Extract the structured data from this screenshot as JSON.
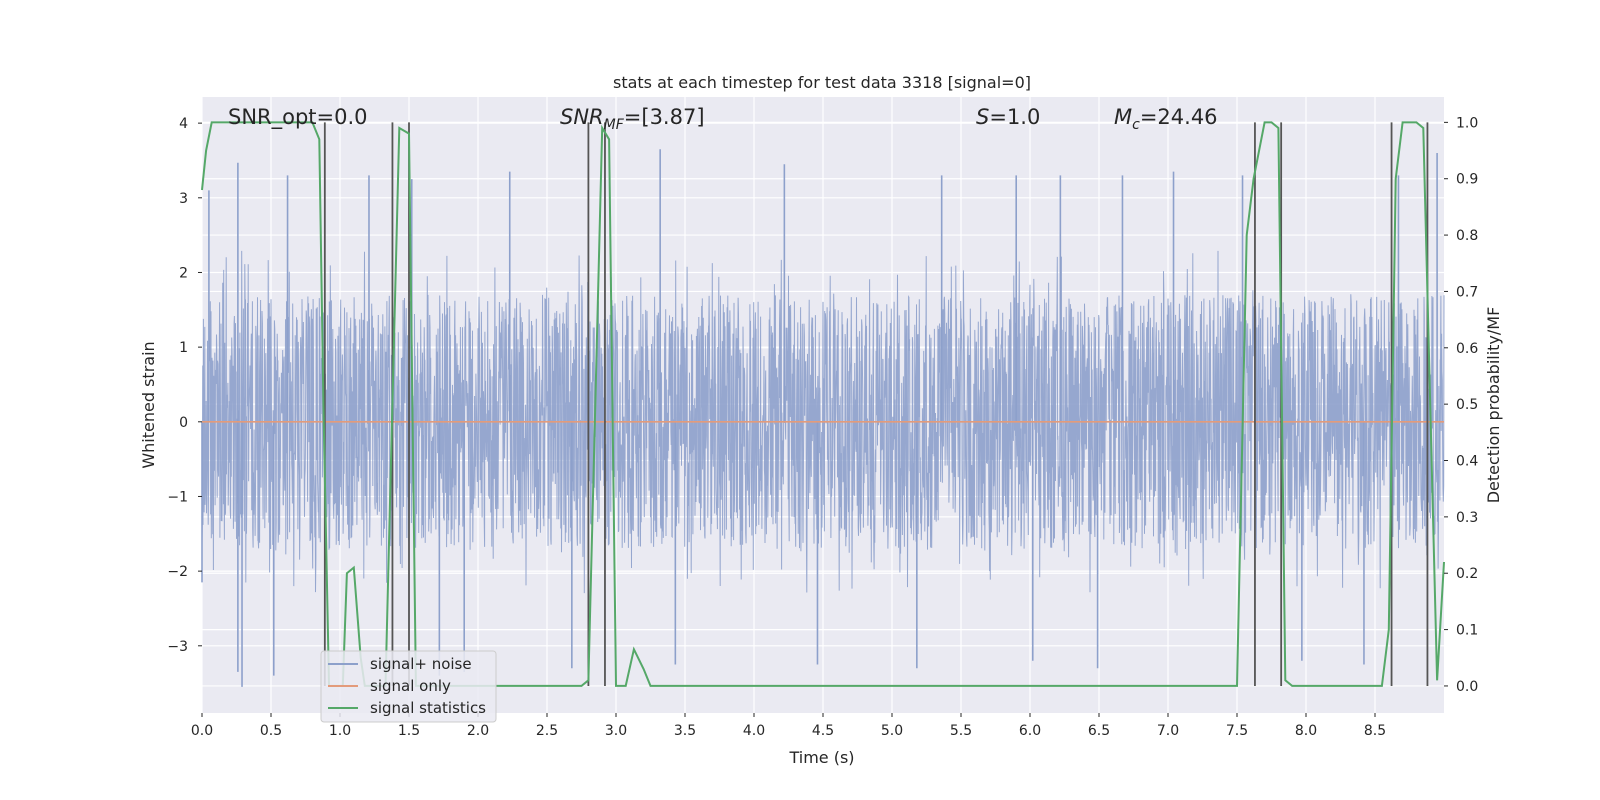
{
  "chart_data": {
    "type": "line",
    "title": "stats at each timestep for test data 3318 [signal=0]",
    "xlabel": "Time (s)",
    "ylabel_left": "Whitened strain",
    "ylabel_right": "Detection probability/MF",
    "xlim": [
      0.0,
      9.0
    ],
    "ylim_left": [
      -3.9,
      4.35
    ],
    "ylim_right": [
      -0.048,
      1.045
    ],
    "x_ticks": [
      "0.0",
      "0.5",
      "1.0",
      "1.5",
      "2.0",
      "2.5",
      "3.0",
      "3.5",
      "4.0",
      "4.5",
      "5.0",
      "5.5",
      "6.0",
      "6.5",
      "7.0",
      "7.5",
      "8.0",
      "8.5"
    ],
    "x_tick_values": [
      0.0,
      0.5,
      1.0,
      1.5,
      2.0,
      2.5,
      3.0,
      3.5,
      4.0,
      4.5,
      5.0,
      5.5,
      6.0,
      6.5,
      7.0,
      7.5,
      8.0,
      8.5
    ],
    "y_left_ticks": [
      "−3",
      "−2",
      "−1",
      "0",
      "1",
      "2",
      "3",
      "4"
    ],
    "y_left_tick_values": [
      -3,
      -2,
      -1,
      0,
      1,
      2,
      3,
      4
    ],
    "y_right_ticks": [
      "0.0",
      "0.1",
      "0.2",
      "0.3",
      "0.4",
      "0.5",
      "0.6",
      "0.7",
      "0.8",
      "0.9",
      "1.0"
    ],
    "y_right_tick_values": [
      0.0,
      0.1,
      0.2,
      0.3,
      0.4,
      0.5,
      0.6,
      0.7,
      0.8,
      0.9,
      1.0
    ],
    "grid": true,
    "legend_position": "lower-left",
    "annotations": {
      "snr_opt": "SNR_opt=0.0",
      "snr_mf_main": "SNR",
      "snr_mf_sub": "MF",
      "snr_mf_value": "=[3.87]",
      "s_symbol": "S",
      "s_value": "=1.0",
      "mc_main": "M",
      "mc_sub": "c",
      "mc_value": "=24.46"
    },
    "series": [
      {
        "name": "signal+ noise",
        "axis": "left",
        "color": "#8da0cb",
        "kind": "noise",
        "x_range": [
          0.0,
          9.0
        ],
        "typical_range": [
          -1.7,
          1.7
        ],
        "peaks": [
          [
            0.05,
            3.1
          ],
          [
            0.26,
            3.47
          ],
          [
            0.62,
            3.3
          ],
          [
            1.21,
            3.3
          ],
          [
            1.52,
            3.25
          ],
          [
            2.23,
            3.35
          ],
          [
            3.32,
            3.65
          ],
          [
            4.22,
            3.45
          ],
          [
            5.36,
            3.3
          ],
          [
            5.9,
            3.3
          ],
          [
            6.22,
            3.3
          ],
          [
            6.67,
            3.3
          ],
          [
            7.04,
            3.35
          ],
          [
            7.54,
            3.3
          ],
          [
            8.67,
            3.3
          ],
          [
            8.95,
            3.6
          ]
        ],
        "troughs": [
          [
            0.0,
            -2.15
          ],
          [
            0.26,
            -3.35
          ],
          [
            0.29,
            -3.55
          ],
          [
            0.52,
            -3.4
          ],
          [
            1.72,
            -3.4
          ],
          [
            1.9,
            -3.35
          ],
          [
            2.68,
            -3.3
          ],
          [
            3.43,
            -3.25
          ],
          [
            4.46,
            -3.25
          ],
          [
            5.18,
            -3.3
          ],
          [
            6.02,
            -3.2
          ],
          [
            6.49,
            -3.3
          ],
          [
            7.97,
            -3.2
          ],
          [
            8.42,
            -3.25
          ]
        ]
      },
      {
        "name": "signal only",
        "axis": "left",
        "color": "#e39b7b",
        "x": [
          0.0,
          9.0
        ],
        "y": [
          0.0,
          0.0
        ]
      },
      {
        "name": "signal statistics",
        "axis": "right",
        "color": "#55a868",
        "x": [
          0.0,
          0.03,
          0.07,
          0.15,
          0.3,
          0.5,
          0.7,
          0.8,
          0.85,
          0.88,
          0.92,
          0.97,
          1.02,
          1.05,
          1.1,
          1.15,
          1.18,
          1.25,
          1.33,
          1.38,
          1.43,
          1.5,
          1.55,
          1.6,
          1.7,
          2.0,
          2.5,
          2.75,
          2.8,
          2.85,
          2.9,
          2.95,
          3.0,
          3.07,
          3.13,
          3.2,
          3.25,
          3.4,
          4.0,
          5.0,
          6.0,
          7.0,
          7.5,
          7.57,
          7.62,
          7.7,
          7.75,
          7.8,
          7.85,
          7.9,
          7.95,
          8.1,
          8.5,
          8.55,
          8.6,
          8.65,
          8.7,
          8.8,
          8.85,
          8.9,
          8.95,
          9.0
        ],
        "y": [
          0.88,
          0.95,
          1.0,
          1.0,
          1.0,
          1.0,
          1.0,
          1.0,
          0.97,
          0.5,
          0.0,
          0.0,
          0.0,
          0.2,
          0.21,
          0.05,
          0.0,
          0.0,
          0.0,
          0.5,
          0.99,
          0.98,
          0.0,
          0.0,
          0.0,
          0.0,
          0.0,
          0.0,
          0.01,
          0.5,
          0.99,
          0.97,
          0.0,
          0.0,
          0.065,
          0.03,
          0.0,
          0.0,
          0.0,
          0.0,
          0.0,
          0.0,
          0.0,
          0.8,
          0.9,
          1.0,
          1.0,
          0.99,
          0.01,
          0.0,
          0.0,
          0.0,
          0.0,
          0.0,
          0.1,
          0.9,
          1.0,
          1.0,
          0.99,
          0.5,
          0.01,
          0.22
        ]
      }
    ],
    "vertical_markers": [
      0.89,
      1.38,
      1.5,
      2.8,
      2.92,
      7.63,
      7.82,
      8.62,
      8.88
    ]
  }
}
